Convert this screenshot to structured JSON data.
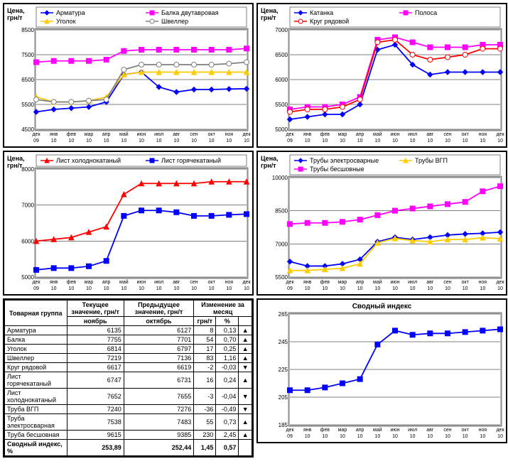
{
  "x_labels": [
    "дек 09",
    "янв 10",
    "фев 10",
    "мар 10",
    "апр 10",
    "май 10",
    "июн 10",
    "июл 10",
    "авг 10",
    "сен 10",
    "окт 10",
    "ноя 10",
    "дек 10"
  ],
  "axis_title": "Цена, грн/т",
  "chart1": {
    "ylim": [
      4500,
      8500
    ],
    "ytick_step": 1000,
    "series": [
      {
        "name": "Арматура",
        "color": "#0000ff",
        "marker": "diamond",
        "values": [
          5200,
          5300,
          5350,
          5400,
          5600,
          6700,
          6800,
          6200,
          6000,
          6100,
          6100,
          6120,
          6130
        ]
      },
      {
        "name": "Балка двутавровая",
        "color": "#ff00ff",
        "marker": "square",
        "values": [
          7200,
          7250,
          7250,
          7250,
          7300,
          7650,
          7700,
          7700,
          7700,
          7700,
          7700,
          7700,
          7750
        ]
      },
      {
        "name": "Уголок",
        "color": "#ffcc00",
        "marker": "triangle",
        "values": [
          5800,
          5600,
          5600,
          5650,
          5800,
          6700,
          6800,
          6800,
          6800,
          6800,
          6800,
          6800,
          6800
        ]
      },
      {
        "name": "Швеллер",
        "color": "#808080",
        "marker": "circle",
        "values": [
          5700,
          5600,
          5600,
          5650,
          5700,
          6900,
          7100,
          7100,
          7100,
          7100,
          7100,
          7140,
          7200
        ]
      }
    ]
  },
  "chart2": {
    "ylim": [
      5000,
      7000
    ],
    "ytick_step": 500,
    "series": [
      {
        "name": "Катанка",
        "color": "#0000ff",
        "marker": "diamond",
        "values": [
          5200,
          5250,
          5300,
          5300,
          5500,
          6600,
          6700,
          6300,
          6100,
          6150,
          6150,
          6150,
          6150
        ]
      },
      {
        "name": "Полоса",
        "color": "#ff00ff",
        "marker": "square",
        "values": [
          5400,
          5450,
          5450,
          5500,
          5650,
          6800,
          6850,
          6750,
          6650,
          6650,
          6650,
          6700,
          6700
        ]
      },
      {
        "name": "Круг рядовой",
        "color": "#ff0000",
        "marker": "circle",
        "values": [
          5350,
          5400,
          5400,
          5450,
          5600,
          6750,
          6800,
          6500,
          6400,
          6450,
          6500,
          6620,
          6620
        ]
      }
    ]
  },
  "chart3": {
    "ylim": [
      5000,
      8000
    ],
    "ytick_step": 1000,
    "series": [
      {
        "name": "Лист холоднокатаный",
        "color": "#ff0000",
        "marker": "triangle",
        "values": [
          6000,
          6050,
          6100,
          6250,
          6400,
          7300,
          7600,
          7600,
          7600,
          7600,
          7650,
          7650,
          7650
        ]
      },
      {
        "name": "Лист горячекатаный",
        "color": "#0000ff",
        "marker": "square",
        "values": [
          5200,
          5250,
          5250,
          5300,
          5450,
          6700,
          6850,
          6850,
          6800,
          6700,
          6700,
          6730,
          6750
        ]
      }
    ]
  },
  "chart4": {
    "ylim": [
      5500,
      10000
    ],
    "ytick_step": 1500,
    "series": [
      {
        "name": "Трубы электросварные",
        "color": "#0000ff",
        "marker": "diamond",
        "values": [
          6200,
          6000,
          6000,
          6100,
          6300,
          7100,
          7300,
          7200,
          7300,
          7400,
          7450,
          7480,
          7530
        ]
      },
      {
        "name": "Трубы ВГП",
        "color": "#ffcc00",
        "marker": "triangle",
        "values": [
          5800,
          5800,
          5850,
          5900,
          6100,
          7050,
          7250,
          7150,
          7100,
          7200,
          7200,
          7280,
          7240
        ]
      },
      {
        "name": "Трубы бесшовные",
        "color": "#ff00ff",
        "marker": "square",
        "values": [
          7900,
          7950,
          7950,
          8000,
          8100,
          8300,
          8500,
          8600,
          8700,
          8800,
          8900,
          9380,
          9610
        ]
      }
    ]
  },
  "table": {
    "headers": {
      "group": "Товарная группа",
      "current": "Текущее значение, грн/т",
      "current_sub": "ноябрь",
      "prev": "Предыдущее значение, грн/т",
      "prev_sub": "октябрь",
      "change": "Изменение за месяц",
      "change_abs": "грн/т",
      "change_pct": "%"
    },
    "rows": [
      {
        "name": "Арматура",
        "cur": "6135",
        "prev": "6127",
        "d": "8",
        "p": "0,13",
        "arrow": "▲"
      },
      {
        "name": "Балка",
        "cur": "7755",
        "prev": "7701",
        "d": "54",
        "p": "0,70",
        "arrow": "▲"
      },
      {
        "name": "Уголок",
        "cur": "6814",
        "prev": "6797",
        "d": "17",
        "p": "0,25",
        "arrow": "▲"
      },
      {
        "name": "Швеллер",
        "cur": "7219",
        "prev": "7136",
        "d": "83",
        "p": "1,16",
        "arrow": "▲"
      },
      {
        "name": "Круг рядовой",
        "cur": "6617",
        "prev": "6619",
        "d": "-2",
        "p": "-0,03",
        "arrow": "▼"
      },
      {
        "name": "Лист горячекатаный",
        "cur": "6747",
        "prev": "6731",
        "d": "16",
        "p": "0,24",
        "arrow": "▲"
      },
      {
        "name": "Лист холоднокатаный",
        "cur": "7652",
        "prev": "7655",
        "d": "-3",
        "p": "-0,04",
        "arrow": "▼"
      },
      {
        "name": "Труба ВГП",
        "cur": "7240",
        "prev": "7276",
        "d": "-36",
        "p": "-0,49",
        "arrow": "▼"
      },
      {
        "name": "Труба электросварная",
        "cur": "7538",
        "prev": "7483",
        "d": "55",
        "p": "0,73",
        "arrow": "▲"
      },
      {
        "name": "Труба бесшовная",
        "cur": "9615",
        "prev": "9385",
        "d": "230",
        "p": "2,45",
        "arrow": "▲"
      }
    ],
    "summary": {
      "name": "Сводный индекс, %",
      "cur": "253,89",
      "prev": "252,44",
      "d": "1,45",
      "p": "0,57",
      "arrow": ""
    }
  },
  "chart5": {
    "title": "Сводный индекс",
    "ylim": [
      185,
      265
    ],
    "ytick_step": 20,
    "series": [
      {
        "name": "",
        "color": "#0000ff",
        "marker": "square",
        "values": [
          210,
          210,
          212,
          215,
          218,
          243,
          253,
          250,
          251,
          251,
          252,
          253,
          254
        ]
      }
    ]
  }
}
